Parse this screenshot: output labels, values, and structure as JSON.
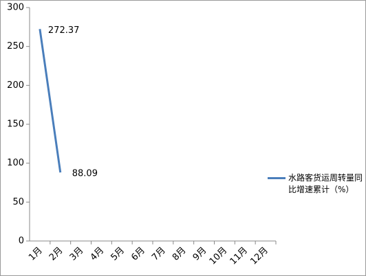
{
  "chart_data": {
    "type": "line",
    "categories": [
      "1月",
      "2月",
      "3月",
      "4月",
      "5月",
      "6月",
      "7月",
      "8月",
      "9月",
      "10月",
      "11月",
      "12月"
    ],
    "series": [
      {
        "name": "水路客货运周转量同比增速累计（%）",
        "color": "#4a7ebb",
        "values": [
          272.37,
          88.09,
          null,
          null,
          null,
          null,
          null,
          null,
          null,
          null,
          null,
          null
        ]
      }
    ],
    "ylim": [
      0,
      300
    ],
    "yticks": [
      0,
      50,
      100,
      150,
      200,
      250,
      300
    ],
    "grid": false,
    "legend": "right",
    "data_labels": true
  }
}
